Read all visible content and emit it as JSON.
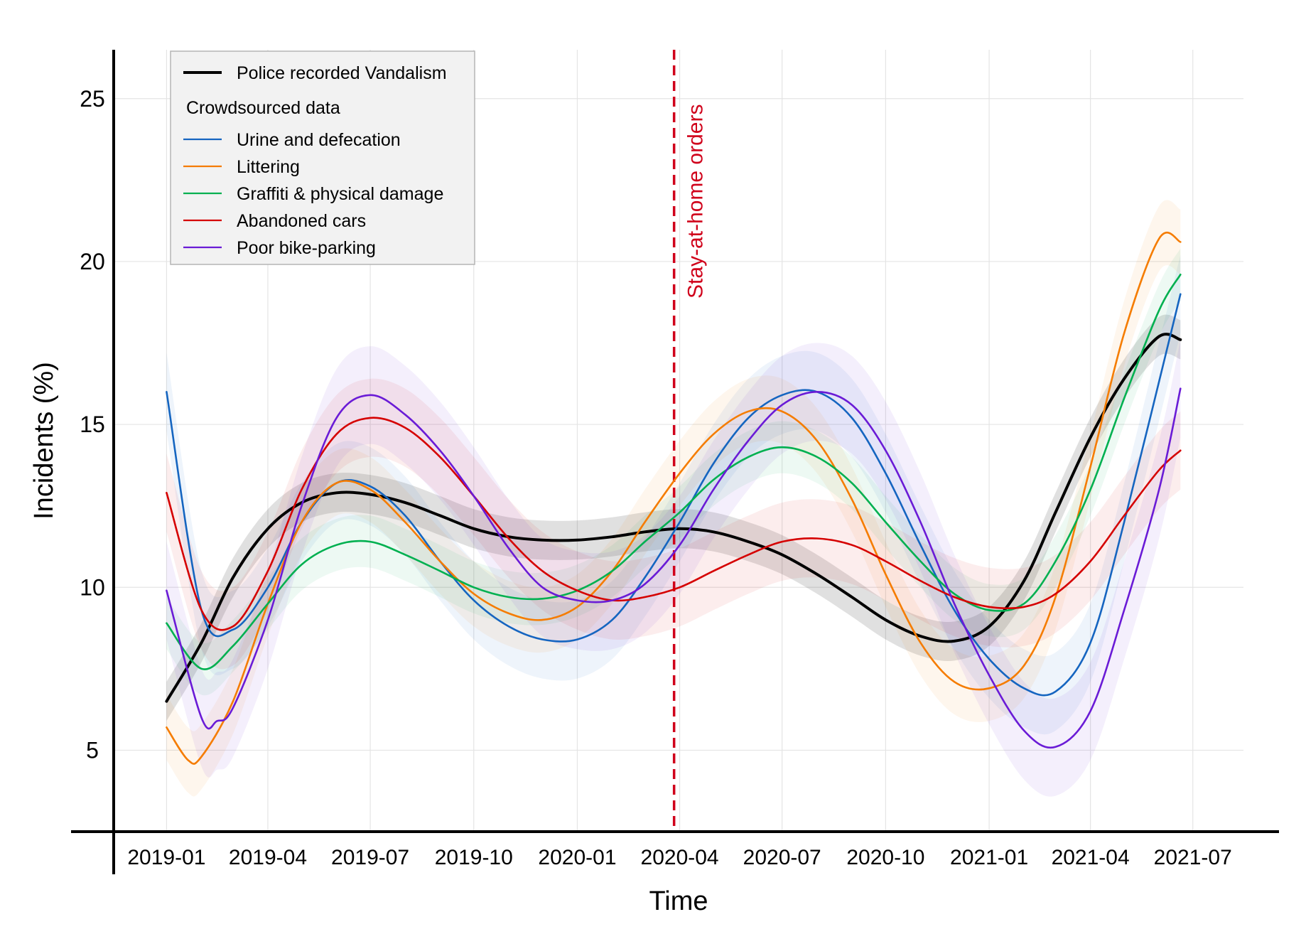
{
  "chart_data": {
    "type": "line",
    "xlabel": "Time",
    "ylabel": "Incidents (%)",
    "ylim": [
      2.5,
      26.5
    ],
    "yticks": [
      5,
      10,
      15,
      20,
      25
    ],
    "xlim": [
      "2018-11-15",
      "2021-08-15"
    ],
    "xticks": [
      "2019-01",
      "2019-04",
      "2019-07",
      "2019-10",
      "2020-01",
      "2020-04",
      "2020-07",
      "2020-10",
      "2021-01",
      "2021-04",
      "2021-07"
    ],
    "grid": true,
    "legend": {
      "position": "top-left",
      "police_title": "Police recorded  Vandalism",
      "crowd_title": "Crowdsourced data"
    },
    "event": {
      "date": "2020-03-27",
      "label": "Stay-at-home orders",
      "color": "#d0021b"
    },
    "series": [
      {
        "name": "Police recorded  Vandalism",
        "group": "police",
        "color": "#000000",
        "x": [
          "2019-01-01",
          "2019-02-01",
          "2019-03-01",
          "2019-04-01",
          "2019-05-01",
          "2019-06-01",
          "2019-07-01",
          "2019-08-01",
          "2019-09-01",
          "2019-10-01",
          "2019-11-01",
          "2019-12-01",
          "2020-01-01",
          "2020-02-01",
          "2020-03-01",
          "2020-04-01",
          "2020-05-01",
          "2020-06-01",
          "2020-07-01",
          "2020-08-01",
          "2020-09-01",
          "2020-10-01",
          "2020-11-01",
          "2020-12-01",
          "2021-01-01",
          "2021-02-01",
          "2021-03-01",
          "2021-04-01",
          "2021-05-01",
          "2021-06-01",
          "2021-06-20"
        ],
        "y": [
          6.5,
          8.3,
          10.3,
          11.8,
          12.6,
          12.9,
          12.85,
          12.6,
          12.2,
          11.8,
          11.55,
          11.45,
          11.45,
          11.55,
          11.7,
          11.8,
          11.7,
          11.4,
          11.0,
          10.4,
          9.7,
          9.0,
          8.5,
          8.35,
          8.8,
          10.2,
          12.3,
          14.6,
          16.4,
          17.7,
          17.6
        ],
        "band": 0.6
      },
      {
        "name": "Urine and defecation",
        "group": "crowd",
        "color": "#1565c0",
        "x": [
          "2019-01-01",
          "2019-02-01",
          "2019-03-01",
          "2019-04-01",
          "2019-05-01",
          "2019-06-01",
          "2019-07-01",
          "2019-08-01",
          "2019-09-01",
          "2019-10-01",
          "2019-11-01",
          "2019-12-01",
          "2020-01-01",
          "2020-02-01",
          "2020-03-01",
          "2020-04-01",
          "2020-05-01",
          "2020-06-01",
          "2020-07-01",
          "2020-08-01",
          "2020-09-01",
          "2020-10-01",
          "2020-11-01",
          "2020-12-01",
          "2021-01-01",
          "2021-02-01",
          "2021-03-01",
          "2021-04-01",
          "2021-05-01",
          "2021-06-20"
        ],
        "y": [
          16.0,
          9.3,
          8.7,
          10.0,
          12.0,
          13.2,
          13.1,
          12.2,
          10.8,
          9.6,
          8.8,
          8.4,
          8.4,
          9.0,
          10.3,
          12.0,
          13.8,
          15.2,
          15.9,
          16.0,
          15.2,
          13.5,
          11.3,
          9.3,
          7.8,
          6.9,
          6.8,
          8.3,
          12.0,
          19.0
        ],
        "band": 1.2
      },
      {
        "name": "Littering",
        "group": "crowd",
        "color": "#f57c00",
        "x": [
          "2019-01-01",
          "2019-01-20",
          "2019-02-01",
          "2019-03-01",
          "2019-04-01",
          "2019-05-01",
          "2019-06-01",
          "2019-07-01",
          "2019-08-01",
          "2019-09-01",
          "2019-10-01",
          "2019-11-01",
          "2019-12-01",
          "2020-01-01",
          "2020-02-01",
          "2020-03-01",
          "2020-04-01",
          "2020-05-01",
          "2020-06-01",
          "2020-07-01",
          "2020-08-01",
          "2020-09-01",
          "2020-10-01",
          "2020-11-01",
          "2020-12-01",
          "2021-01-01",
          "2021-02-01",
          "2021-03-01",
          "2021-04-01",
          "2021-05-01",
          "2021-06-01",
          "2021-06-20"
        ],
        "y": [
          5.7,
          4.7,
          4.8,
          6.5,
          9.5,
          12.0,
          13.2,
          13.0,
          12.0,
          10.8,
          9.8,
          9.2,
          9.0,
          9.4,
          10.5,
          12.0,
          13.5,
          14.7,
          15.4,
          15.4,
          14.5,
          12.7,
          10.4,
          8.3,
          7.1,
          6.9,
          7.6,
          9.7,
          13.7,
          17.8,
          20.7,
          20.6
        ],
        "band": 1.0
      },
      {
        "name": "Graffiti & physical damage",
        "group": "crowd",
        "color": "#00b050",
        "x": [
          "2019-01-01",
          "2019-02-01",
          "2019-03-01",
          "2019-04-01",
          "2019-05-01",
          "2019-06-01",
          "2019-07-01",
          "2019-08-01",
          "2019-09-01",
          "2019-10-01",
          "2019-11-01",
          "2019-12-01",
          "2020-01-01",
          "2020-02-01",
          "2020-03-01",
          "2020-04-01",
          "2020-05-01",
          "2020-06-01",
          "2020-07-01",
          "2020-08-01",
          "2020-09-01",
          "2020-10-01",
          "2020-11-01",
          "2020-12-01",
          "2021-01-01",
          "2021-02-01",
          "2021-03-01",
          "2021-04-01",
          "2021-05-01",
          "2021-06-01",
          "2021-06-20"
        ],
        "y": [
          8.9,
          7.5,
          8.2,
          9.5,
          10.7,
          11.3,
          11.4,
          11.0,
          10.5,
          10.0,
          9.7,
          9.65,
          9.9,
          10.5,
          11.4,
          12.3,
          13.3,
          14.0,
          14.3,
          14.0,
          13.2,
          12.0,
          10.8,
          9.8,
          9.3,
          9.5,
          10.8,
          13.0,
          15.8,
          18.5,
          19.6
        ],
        "band": 0.8
      },
      {
        "name": "Abandoned cars",
        "group": "crowd",
        "color": "#d50000",
        "x": [
          "2019-01-01",
          "2019-02-01",
          "2019-03-01",
          "2019-04-01",
          "2019-05-01",
          "2019-06-01",
          "2019-07-01",
          "2019-08-01",
          "2019-09-01",
          "2019-10-01",
          "2019-11-01",
          "2019-12-01",
          "2020-01-01",
          "2020-02-01",
          "2020-03-01",
          "2020-04-01",
          "2020-05-01",
          "2020-06-01",
          "2020-07-01",
          "2020-08-01",
          "2020-09-01",
          "2020-10-01",
          "2020-11-01",
          "2020-12-01",
          "2021-01-01",
          "2021-02-01",
          "2021-03-01",
          "2021-04-01",
          "2021-05-01",
          "2021-06-01",
          "2021-06-20"
        ],
        "y": [
          12.9,
          9.3,
          8.8,
          10.5,
          13.0,
          14.7,
          15.2,
          14.9,
          14.0,
          12.8,
          11.5,
          10.5,
          9.9,
          9.6,
          9.7,
          10.0,
          10.5,
          11.0,
          11.4,
          11.5,
          11.3,
          10.8,
          10.2,
          9.7,
          9.4,
          9.4,
          9.8,
          10.8,
          12.2,
          13.6,
          14.2
        ],
        "band": 1.2
      },
      {
        "name": "Poor bike-parking",
        "group": "crowd",
        "color": "#6a1bd6",
        "x": [
          "2019-01-01",
          "2019-02-01",
          "2019-02-15",
          "2019-03-01",
          "2019-04-01",
          "2019-05-01",
          "2019-06-01",
          "2019-07-01",
          "2019-08-01",
          "2019-09-01",
          "2019-10-01",
          "2019-11-01",
          "2019-12-01",
          "2020-01-01",
          "2020-02-01",
          "2020-03-01",
          "2020-04-01",
          "2020-05-01",
          "2020-06-01",
          "2020-07-01",
          "2020-08-01",
          "2020-09-01",
          "2020-10-01",
          "2020-11-01",
          "2020-12-01",
          "2021-01-01",
          "2021-02-01",
          "2021-03-01",
          "2021-04-01",
          "2021-05-01",
          "2021-06-01",
          "2021-06-20"
        ],
        "y": [
          9.9,
          6.0,
          5.9,
          6.3,
          9.0,
          12.5,
          15.2,
          15.9,
          15.3,
          14.2,
          12.8,
          11.2,
          10.0,
          9.6,
          9.6,
          10.1,
          11.3,
          13.0,
          14.5,
          15.6,
          16.0,
          15.6,
          14.2,
          12.0,
          9.5,
          7.3,
          5.6,
          5.1,
          6.2,
          9.3,
          13.0,
          16.1
        ],
        "band": 1.5
      }
    ]
  }
}
